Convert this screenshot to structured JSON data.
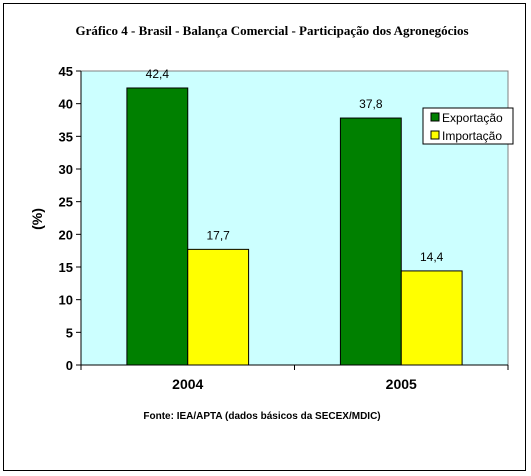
{
  "chart_data": {
    "type": "bar",
    "title": "Gráfico 4 - Brasil - Balança Comercial - Participação dos Agronegócios",
    "ylabel": "(%)",
    "xlabel": "",
    "categories": [
      "2004",
      "2005"
    ],
    "series": [
      {
        "name": "Exportação",
        "values": [
          42.4,
          37.8
        ],
        "labels": [
          "42,4",
          "37,8"
        ],
        "color": "#008000"
      },
      {
        "name": "Importação",
        "values": [
          17.7,
          14.4
        ],
        "labels": [
          "17,7",
          "14,4"
        ],
        "color": "#ffff00"
      }
    ],
    "ylim": [
      0,
      45
    ],
    "yticks": [
      0,
      5,
      10,
      15,
      20,
      25,
      30,
      35,
      40,
      45
    ],
    "grid": false,
    "legend_position": "right",
    "plot_background": "#ccffff",
    "source": "Fonte: IEA/APTA (dados básicos da SECEX/MDIC)"
  }
}
